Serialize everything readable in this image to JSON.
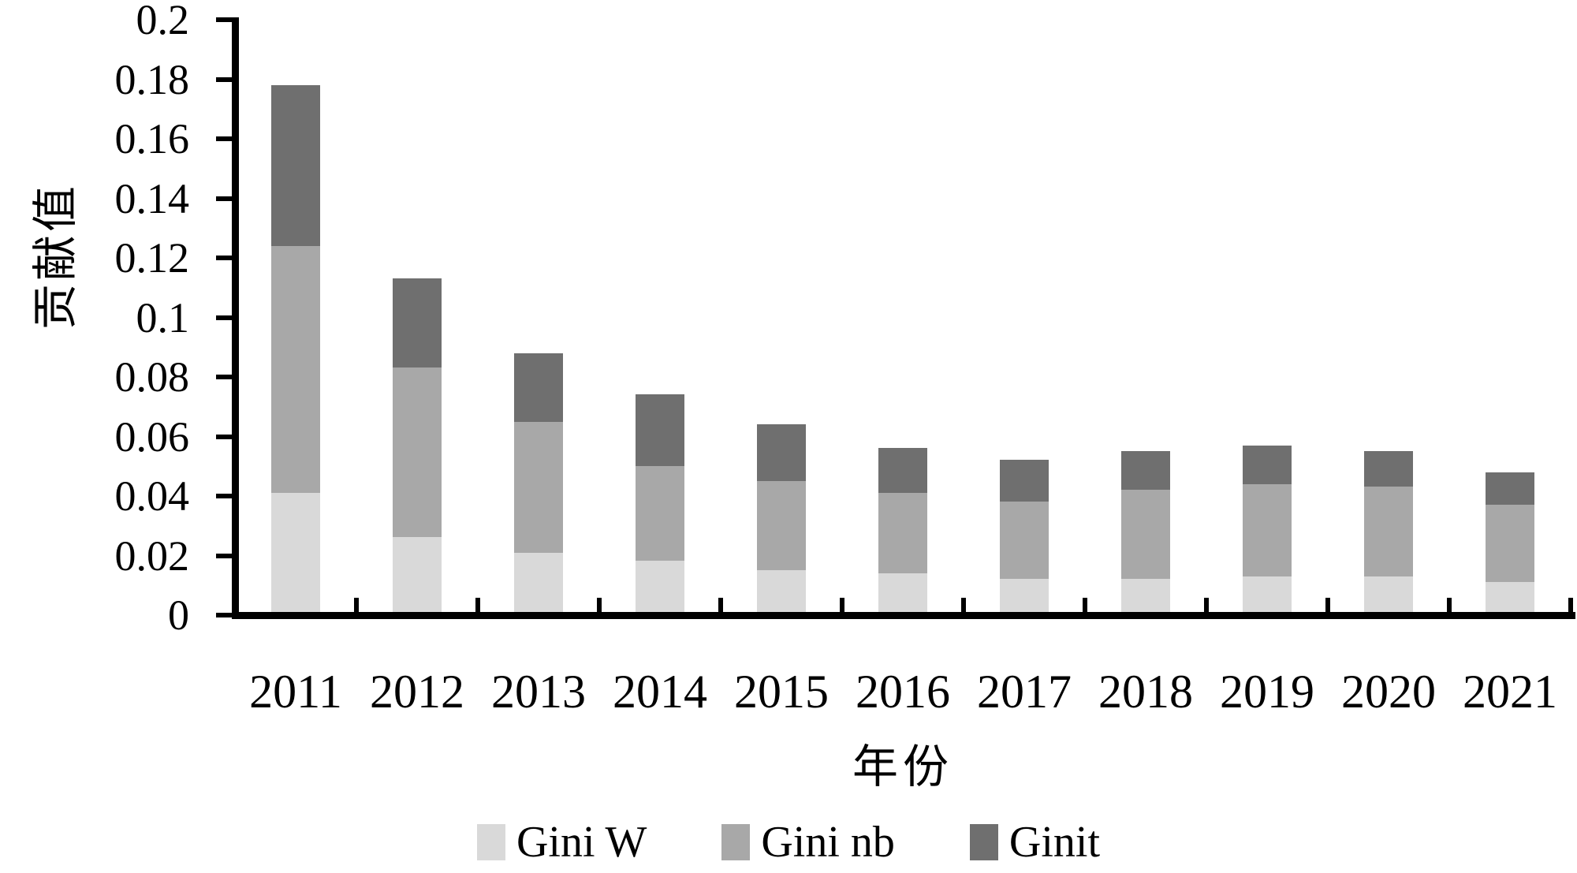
{
  "chart_data": {
    "type": "bar",
    "stacked": true,
    "categories": [
      "2011",
      "2012",
      "2013",
      "2014",
      "2015",
      "2016",
      "2017",
      "2018",
      "2019",
      "2020",
      "2021"
    ],
    "series": [
      {
        "name": "Gini W",
        "color": "#d9d9d9",
        "values": [
          0.04,
          0.025,
          0.02,
          0.017,
          0.014,
          0.013,
          0.011,
          0.011,
          0.012,
          0.012,
          0.01
        ]
      },
      {
        "name": "Gini nb",
        "color": "#a8a8a8",
        "values": [
          0.083,
          0.057,
          0.044,
          0.032,
          0.03,
          0.027,
          0.026,
          0.03,
          0.031,
          0.03,
          0.026
        ]
      },
      {
        "name": "Ginit",
        "color": "#6f6f6f",
        "values": [
          0.054,
          0.03,
          0.023,
          0.024,
          0.019,
          0.015,
          0.014,
          0.013,
          0.013,
          0.012,
          0.011
        ]
      }
    ],
    "stack_totals": [
      0.177,
      0.112,
      0.087,
      0.073,
      0.063,
      0.055,
      0.051,
      0.054,
      0.056,
      0.054,
      0.047
    ],
    "xlabel": "年份",
    "ylabel": "贡献值",
    "ylim": [
      0,
      0.2
    ],
    "y_ticks": [
      {
        "value": 0.2,
        "label": "0.2"
      },
      {
        "value": 0.18,
        "label": "0.18"
      },
      {
        "value": 0.16,
        "label": "0.16"
      },
      {
        "value": 0.14,
        "label": "0.14"
      },
      {
        "value": 0.12,
        "label": "0.12"
      },
      {
        "value": 0.1,
        "label": "0.1"
      },
      {
        "value": 0.08,
        "label": "0.08"
      },
      {
        "value": 0.06,
        "label": "0.06"
      },
      {
        "value": 0.04,
        "label": "0.04"
      },
      {
        "value": 0.02,
        "label": "0.02"
      },
      {
        "value": 0,
        "label": "0"
      }
    ],
    "grid": false,
    "legend_position": "bottom",
    "axis_color": "#000000",
    "background_color": "#ffffff"
  },
  "legend": {
    "items": [
      {
        "label": "Gini W",
        "color": "#d9d9d9"
      },
      {
        "label": "Gini nb",
        "color": "#a8a8a8"
      },
      {
        "label": "Ginit",
        "color": "#6f6f6f"
      }
    ]
  }
}
